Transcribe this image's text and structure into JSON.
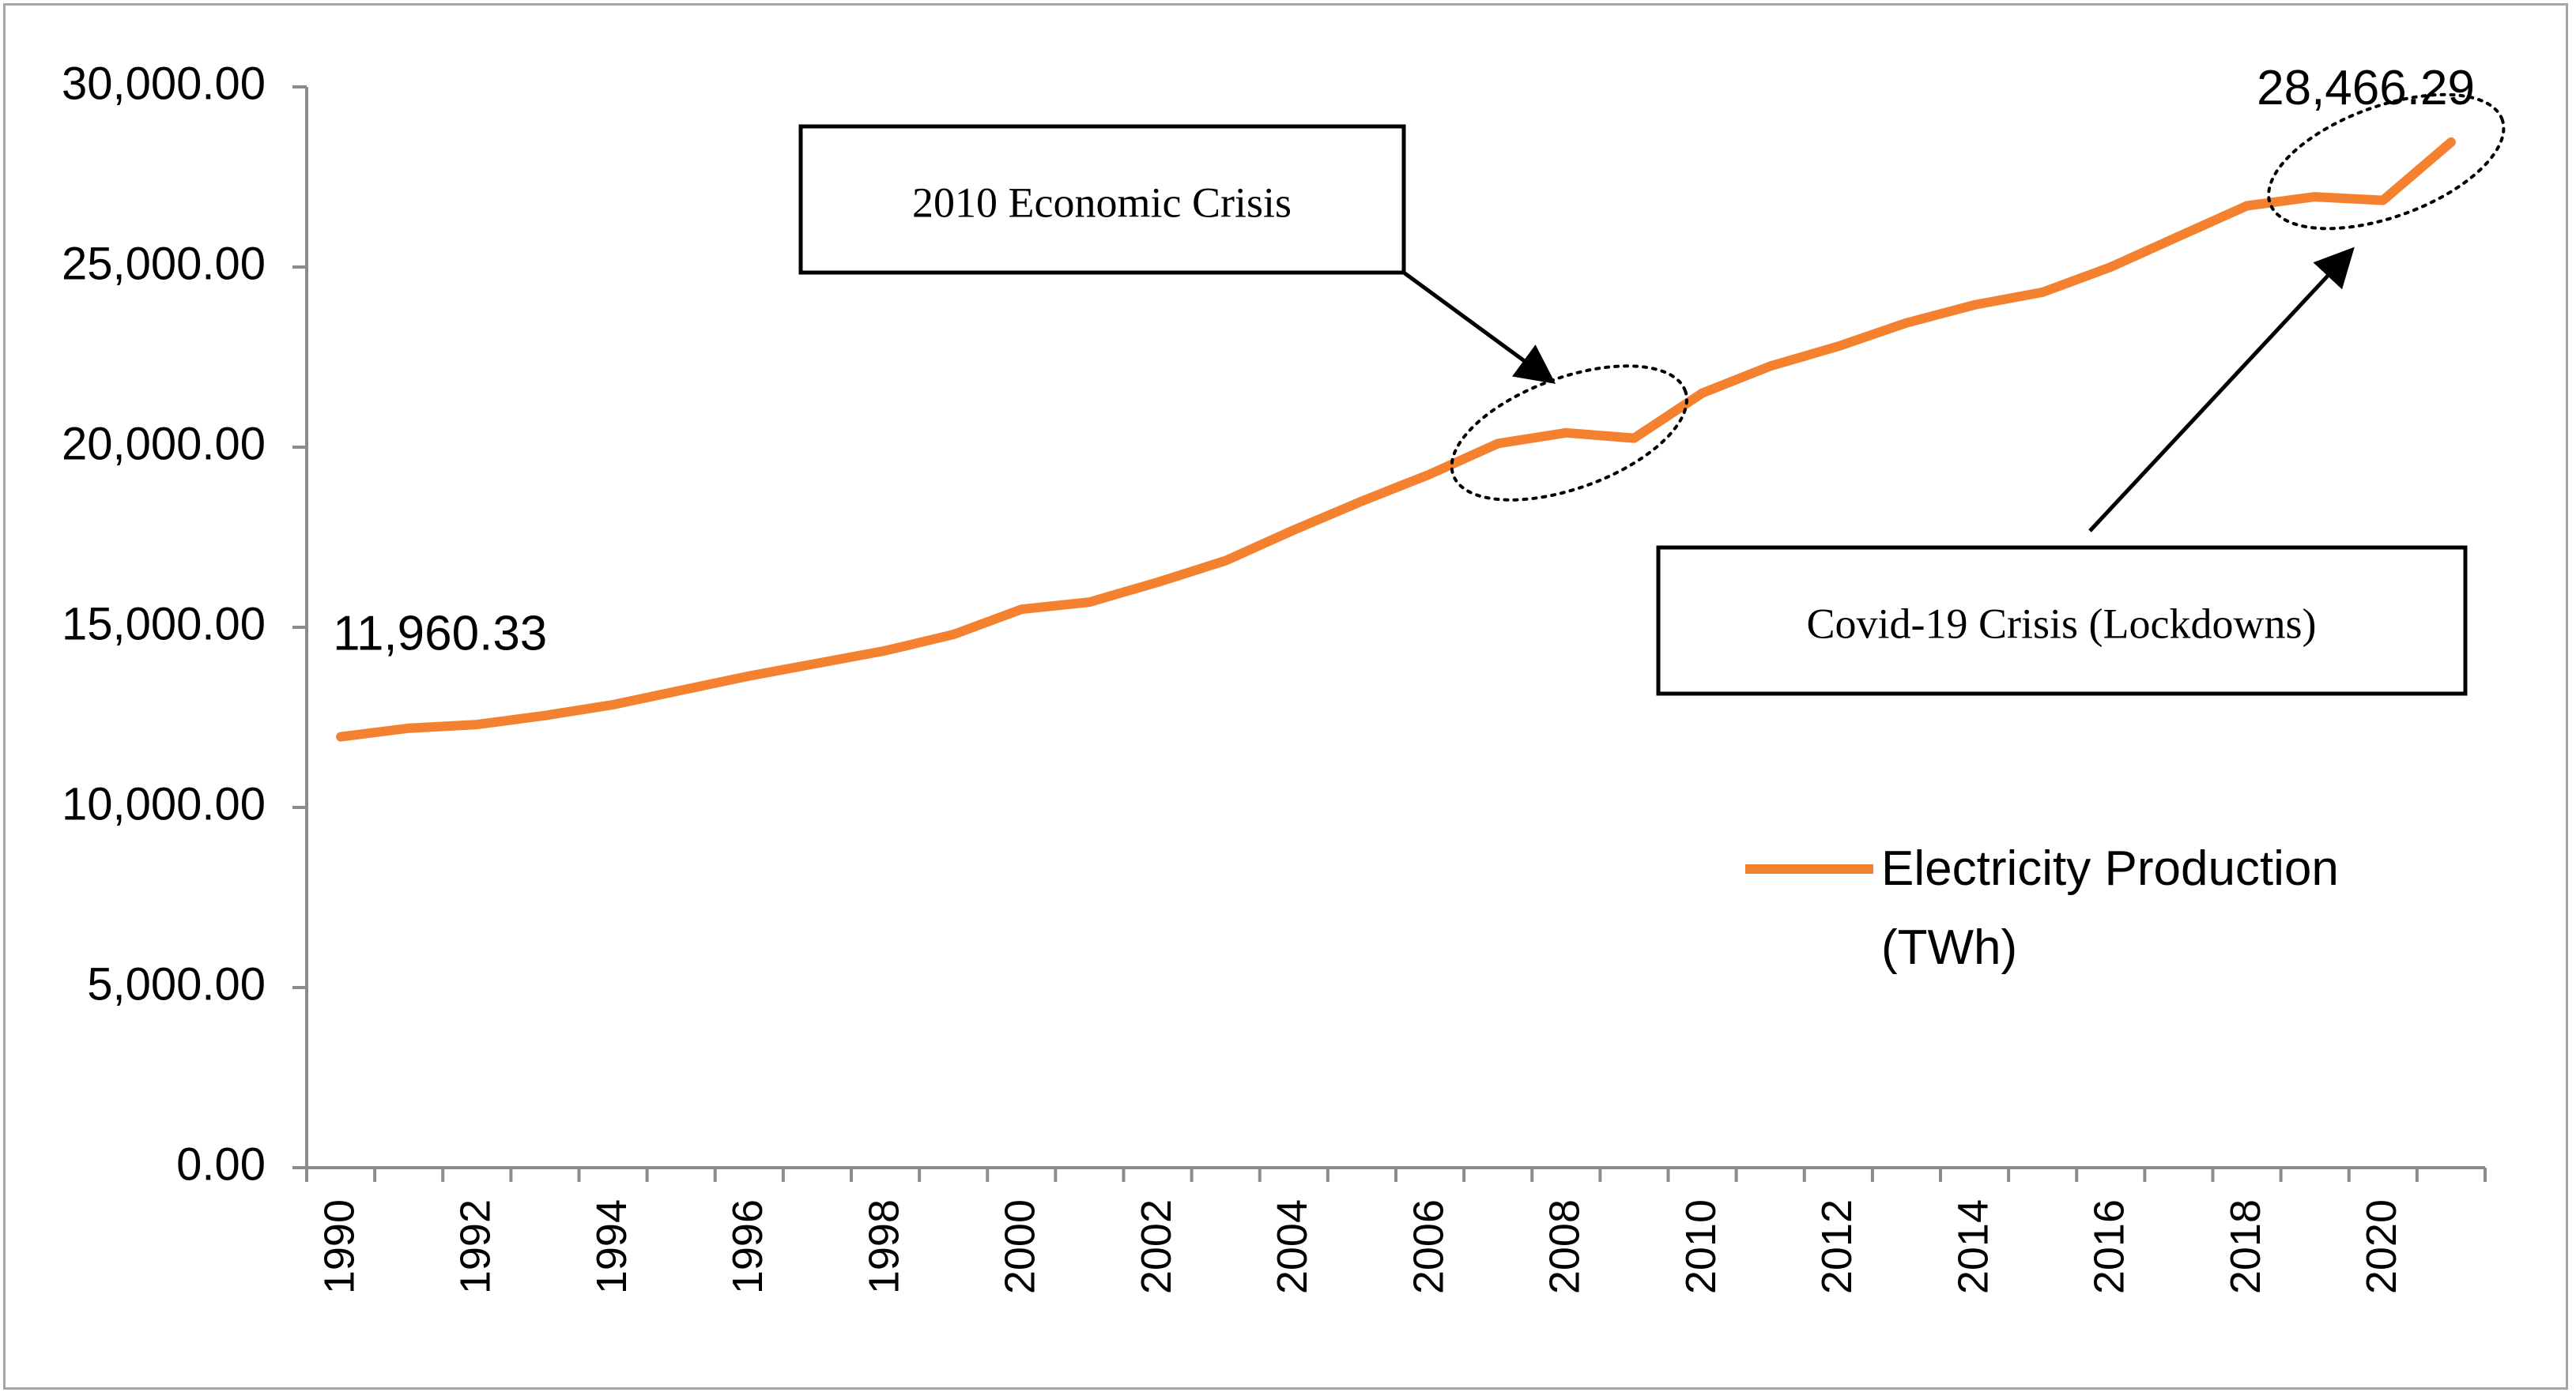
{
  "chart_data": {
    "type": "line",
    "title": "",
    "xlabel": "",
    "ylabel": "",
    "ylim": [
      0,
      30000
    ],
    "yticks": [
      "0.00",
      "5,000.00",
      "10,000.00",
      "15,000.00",
      "20,000.00",
      "25,000.00",
      "30,000.00"
    ],
    "x": [
      1990,
      1991,
      1992,
      1993,
      1994,
      1995,
      1996,
      1997,
      1998,
      1999,
      2000,
      2001,
      2002,
      2003,
      2004,
      2005,
      2006,
      2007,
      2008,
      2009,
      2010,
      2011,
      2012,
      2013,
      2014,
      2015,
      2016,
      2017,
      2018,
      2019,
      2020,
      2021
    ],
    "xtick_labels": [
      "1990",
      "1992",
      "1994",
      "1996",
      "1998",
      "2000",
      "2002",
      "2004",
      "2006",
      "2008",
      "2010",
      "2012",
      "2014",
      "2016",
      "2018",
      "2020"
    ],
    "series": [
      {
        "name": "Electricity Production (TWh)",
        "color": "#f4812f",
        "values": [
          11960.33,
          12200,
          12300,
          12550,
          12850,
          13250,
          13650,
          14000,
          14350,
          14800,
          15500,
          15700,
          16250,
          16850,
          17700,
          18500,
          19250,
          20100,
          20400,
          20250,
          21500,
          22250,
          22800,
          23450,
          23950,
          24300,
          25000,
          25850,
          26700,
          26950,
          26850,
          28466.29
        ]
      }
    ],
    "data_labels": [
      {
        "text": "11,960.33",
        "x": 1990
      },
      {
        "text": "28,466.29",
        "x": 2021
      }
    ],
    "legend": {
      "position": "right",
      "lines": [
        "Electricity Production",
        "(TWh)"
      ]
    },
    "annotations": [
      {
        "text": "2010 Economic Crisis",
        "target_years": [
          2007,
          2009
        ]
      },
      {
        "text": "Covid-19 Crisis (Lockdowns)",
        "target_years": [
          2019,
          2021
        ]
      }
    ]
  }
}
